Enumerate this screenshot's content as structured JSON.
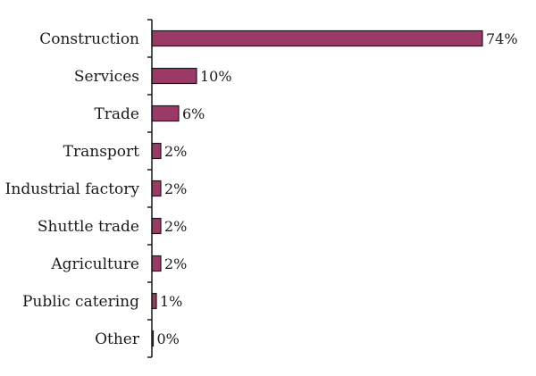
{
  "chart_data": {
    "type": "bar",
    "orientation": "horizontal",
    "categories": [
      "Construction",
      "Services",
      "Trade",
      "Transport",
      "Industrial factory",
      "Shuttle trade",
      "Agriculture",
      "Public catering",
      "Other"
    ],
    "values": [
      74,
      10,
      6,
      2,
      2,
      2,
      2,
      1,
      0
    ],
    "value_labels": [
      "74%",
      "10%",
      "6%",
      "2%",
      "2%",
      "2%",
      "2%",
      "1%",
      "0%"
    ],
    "title": "",
    "xlabel": "",
    "ylabel": "",
    "xlim": [
      0,
      74
    ],
    "grid": false,
    "legend": "none",
    "bar_color": "#9b3a66",
    "bar_edge_color": "#1a1a1a"
  }
}
